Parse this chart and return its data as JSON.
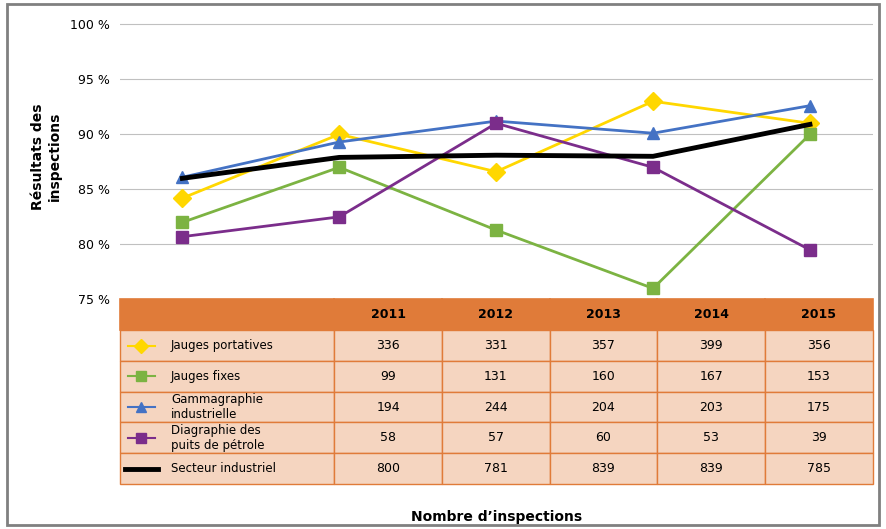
{
  "years": [
    2011,
    2012,
    2013,
    2014,
    2015
  ],
  "series": [
    {
      "label": "Jauges portatives",
      "values": [
        84.2,
        90.0,
        86.6,
        93.0,
        91.0
      ],
      "color": "#FFD700",
      "marker": "D",
      "linewidth": 2.0,
      "markersize": 9
    },
    {
      "label": "Jauges fixes",
      "values": [
        82.0,
        87.0,
        81.3,
        76.0,
        90.0
      ],
      "color": "#7CB342",
      "marker": "s",
      "linewidth": 2.0,
      "markersize": 9
    },
    {
      "label": "Gammagraphie\nindustrielle",
      "values": [
        86.1,
        89.3,
        91.2,
        90.1,
        92.6
      ],
      "color": "#4472C4",
      "marker": "^",
      "linewidth": 2.0,
      "markersize": 9
    },
    {
      "label": "Diagraphie des\npuits de pétrole",
      "values": [
        80.7,
        82.5,
        91.0,
        87.0,
        79.5
      ],
      "color": "#7B2D8B",
      "marker": "s",
      "linewidth": 2.0,
      "markersize": 9
    },
    {
      "label": "Secteur industriel",
      "values": [
        86.0,
        87.9,
        88.1,
        88.0,
        90.9
      ],
      "color": "#000000",
      "marker": null,
      "linewidth": 3.5,
      "markersize": 0
    }
  ],
  "table_rows": [
    {
      "label": "Jauges portatives",
      "color": "#FFD700",
      "marker": "D",
      "values": [
        336,
        331,
        357,
        399,
        356
      ]
    },
    {
      "label": "Jauges fixes",
      "color": "#7CB342",
      "marker": "s",
      "values": [
        99,
        131,
        160,
        167,
        153
      ]
    },
    {
      "label": "Gammagraphie\nindustrielle",
      "color": "#4472C4",
      "marker": "^",
      "values": [
        194,
        244,
        204,
        203,
        175
      ]
    },
    {
      "label": "Diagraphie des\npuits de pétrole",
      "color": "#7B2D8B",
      "marker": "s",
      "values": [
        58,
        57,
        60,
        53,
        39
      ]
    },
    {
      "label": "Secteur industriel",
      "color": "#000000",
      "marker": null,
      "values": [
        800,
        781,
        839,
        839,
        785
      ]
    }
  ],
  "ylim": [
    75,
    101
  ],
  "yticks": [
    75,
    80,
    85,
    90,
    95,
    100
  ],
  "ylabel": "Résultats des\ninspections",
  "xlabel": "Nombre d’inspections",
  "bg_color": "#FFFFFF",
  "grid_color": "#C0C0C0",
  "table_header_bg": "#E07B39",
  "table_row_bg": "#F5D5C0",
  "table_border_color": "#E07B39",
  "outer_border_color": "#808080"
}
